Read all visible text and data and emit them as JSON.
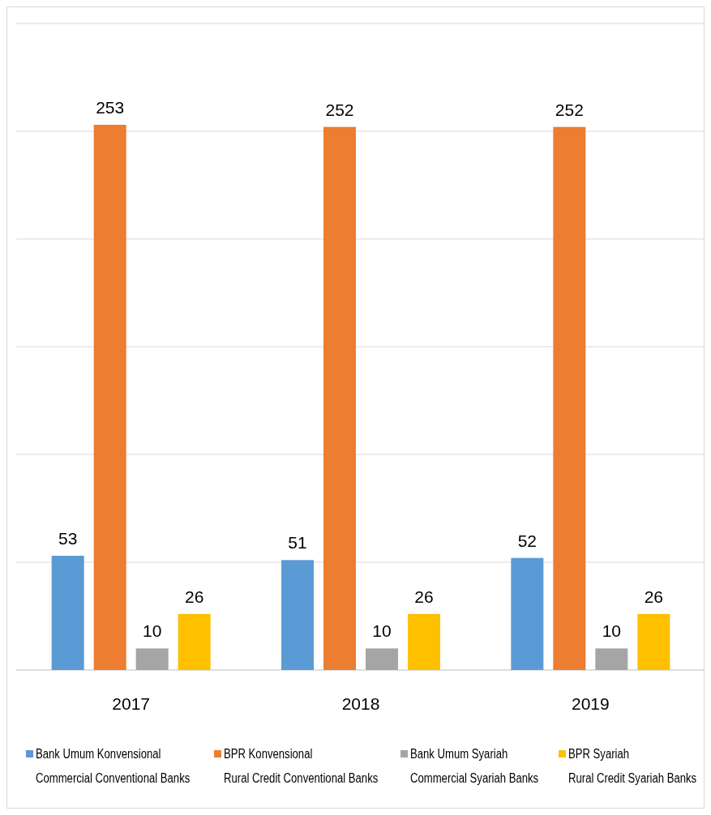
{
  "chart_data": {
    "type": "bar",
    "categories": [
      "2017",
      "2018",
      "2019"
    ],
    "series": [
      {
        "name": "Bank Umum Konvensional\nCommercial Conventional Banks",
        "color": "#5b9bd5",
        "values": [
          53,
          51,
          52
        ]
      },
      {
        "name": "BPR Konvensional\nRural Credit Conventional Banks",
        "color": "#ed7d31",
        "values": [
          253,
          252,
          252
        ]
      },
      {
        "name": "Bank Umum Syariah\nCommercial Syariah Banks",
        "color": "#a5a5a5",
        "values": [
          10,
          10,
          10
        ]
      },
      {
        "name": "BPR Syariah\nRural Credit Syariah Banks",
        "color": "#ffc000",
        "values": [
          26,
          26,
          26
        ]
      }
    ],
    "ylim": [
      0,
      300
    ],
    "yticks": [
      {
        "value": 0,
        "label": null
      },
      {
        "value": 50,
        "label": null
      },
      {
        "value": 100,
        "label": null
      },
      {
        "value": 150,
        "label": null
      },
      {
        "value": 200,
        "label": null
      },
      {
        "value": 250,
        "label": null
      },
      {
        "value": 300,
        "label": null
      }
    ],
    "grid": "y",
    "tick_labels": "x",
    "data_labels": true,
    "legend": "bottom"
  }
}
